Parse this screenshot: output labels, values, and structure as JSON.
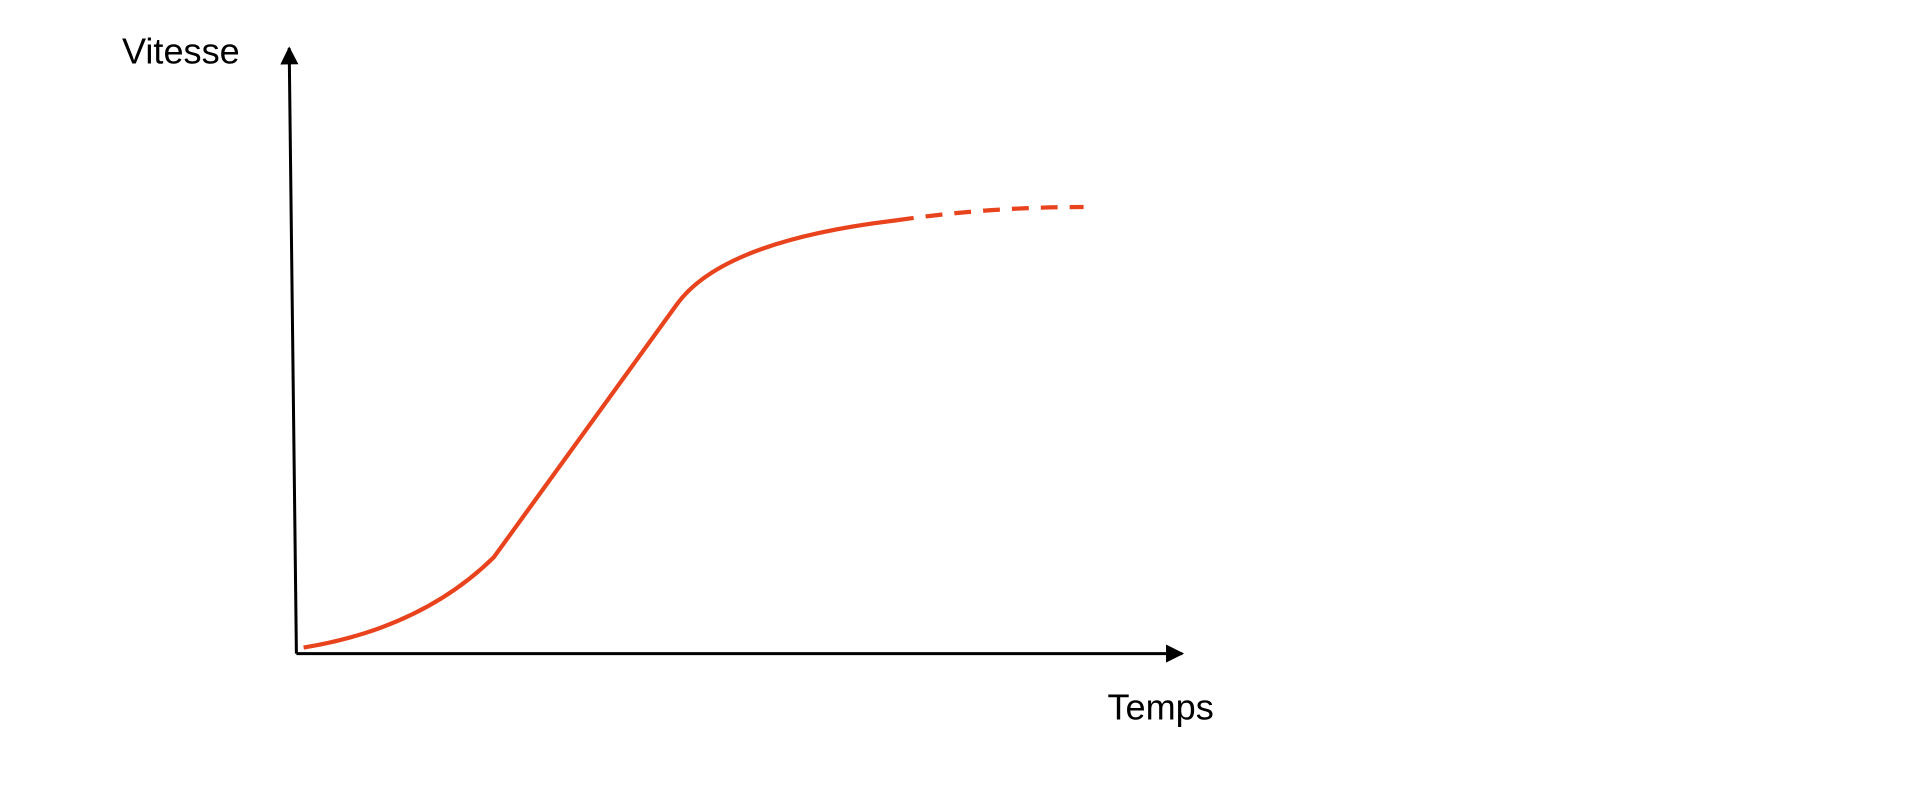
{
  "y_axis_label": "Vitesse",
  "x_axis_label": "Temps"
}
